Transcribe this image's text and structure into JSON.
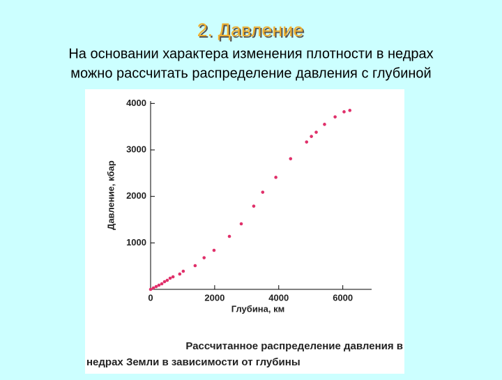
{
  "slide": {
    "title": "2. Давление",
    "text": [
      "На основании характера изменения плотности в недрах",
      "можно рассчитать распределение давления с глубиной"
    ]
  },
  "chart_data": {
    "type": "scatter",
    "xlabel": "Глубина, км",
    "ylabel": "Давление, кбар",
    "caption": [
      "Рассчитанное распределение давления в",
      "недрах Земли в зависимости от глубины"
    ],
    "color": "#e0306a",
    "x": [
      0,
      87,
      174,
      260,
      350,
      435,
      520,
      610,
      700,
      910,
      1020,
      1390,
      1670,
      1980,
      2460,
      2830,
      3220,
      3500,
      3910,
      4370,
      4870,
      5020,
      5170,
      5430,
      5760,
      6040,
      6220
    ],
    "values": [
      0,
      30,
      60,
      90,
      120,
      165,
      195,
      240,
      270,
      330,
      390,
      510,
      680,
      840,
      1140,
      1410,
      1790,
      2090,
      2410,
      2810,
      3170,
      3290,
      3380,
      3550,
      3710,
      3820,
      3850
    ],
    "xlim": [
      0,
      6900
    ],
    "ylim": [
      0,
      4050
    ],
    "xticks": [
      0,
      2000,
      4000,
      6000
    ],
    "yticks": [
      1000,
      2000,
      3000,
      4000
    ]
  }
}
